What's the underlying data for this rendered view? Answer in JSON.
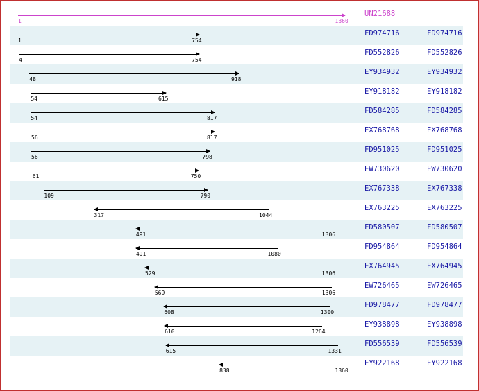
{
  "query": {
    "id": "UN21688",
    "start": "1",
    "end": "1360",
    "start_val": 1,
    "end_val": 1360,
    "strand": "forward"
  },
  "scale_max": 1360,
  "hits": [
    {
      "start": "1",
      "end": "754",
      "start_val": 1,
      "end_val": 754,
      "strand": "forward",
      "id": "FD974716",
      "link": "FD974716"
    },
    {
      "start": "4",
      "end": "754",
      "start_val": 4,
      "end_val": 754,
      "strand": "forward",
      "id": "FD552826",
      "link": "FD552826"
    },
    {
      "start": "48",
      "end": "918",
      "start_val": 48,
      "end_val": 918,
      "strand": "forward",
      "id": "EY934932",
      "link": "EY934932"
    },
    {
      "start": "54",
      "end": "615",
      "start_val": 54,
      "end_val": 615,
      "strand": "forward",
      "id": "EY918182",
      "link": "EY918182"
    },
    {
      "start": "54",
      "end": "817",
      "start_val": 54,
      "end_val": 817,
      "strand": "forward",
      "id": "FD584285",
      "link": "FD584285"
    },
    {
      "start": "56",
      "end": "817",
      "start_val": 56,
      "end_val": 817,
      "strand": "forward",
      "id": "EX768768",
      "link": "EX768768"
    },
    {
      "start": "56",
      "end": "798",
      "start_val": 56,
      "end_val": 798,
      "strand": "forward",
      "id": "FD951025",
      "link": "FD951025"
    },
    {
      "start": "61",
      "end": "750",
      "start_val": 61,
      "end_val": 750,
      "strand": "forward",
      "id": "EW730620",
      "link": "EW730620"
    },
    {
      "start": "109",
      "end": "790",
      "start_val": 109,
      "end_val": 790,
      "strand": "forward",
      "id": "EX767338",
      "link": "EX767338"
    },
    {
      "start": "317",
      "end": "1044",
      "start_val": 317,
      "end_val": 1044,
      "strand": "reverse",
      "id": "EX763225",
      "link": "EX763225"
    },
    {
      "start": "491",
      "end": "1306",
      "start_val": 491,
      "end_val": 1306,
      "strand": "reverse",
      "id": "FD580507",
      "link": "FD580507"
    },
    {
      "start": "491",
      "end": "1080",
      "start_val": 491,
      "end_val": 1080,
      "strand": "reverse",
      "id": "FD954864",
      "link": "FD954864"
    },
    {
      "start": "529",
      "end": "1306",
      "start_val": 529,
      "end_val": 1306,
      "strand": "reverse",
      "id": "EX764945",
      "link": "EX764945"
    },
    {
      "start": "569",
      "end": "1306",
      "start_val": 569,
      "end_val": 1306,
      "strand": "reverse",
      "id": "EW726465",
      "link": "EW726465"
    },
    {
      "start": "608",
      "end": "1300",
      "start_val": 608,
      "end_val": 1300,
      "strand": "reverse",
      "id": "FD978477",
      "link": "FD978477"
    },
    {
      "start": "610",
      "end": "1264",
      "start_val": 610,
      "end_val": 1264,
      "strand": "reverse",
      "id": "EY938898",
      "link": "EY938898"
    },
    {
      "start": "615",
      "end": "1331",
      "start_val": 615,
      "end_val": 1331,
      "strand": "reverse",
      "id": "FD556539",
      "link": "FD556539"
    },
    {
      "start": "838",
      "end": "1360",
      "start_val": 838,
      "end_val": 1360,
      "strand": "reverse",
      "id": "EY922168",
      "link": "EY922168"
    }
  ],
  "colors": {
    "query": "#cc44cc",
    "link": "#1a1aa6",
    "shade": "#e6f2f5",
    "line": "#000000",
    "border": "#c03030"
  }
}
